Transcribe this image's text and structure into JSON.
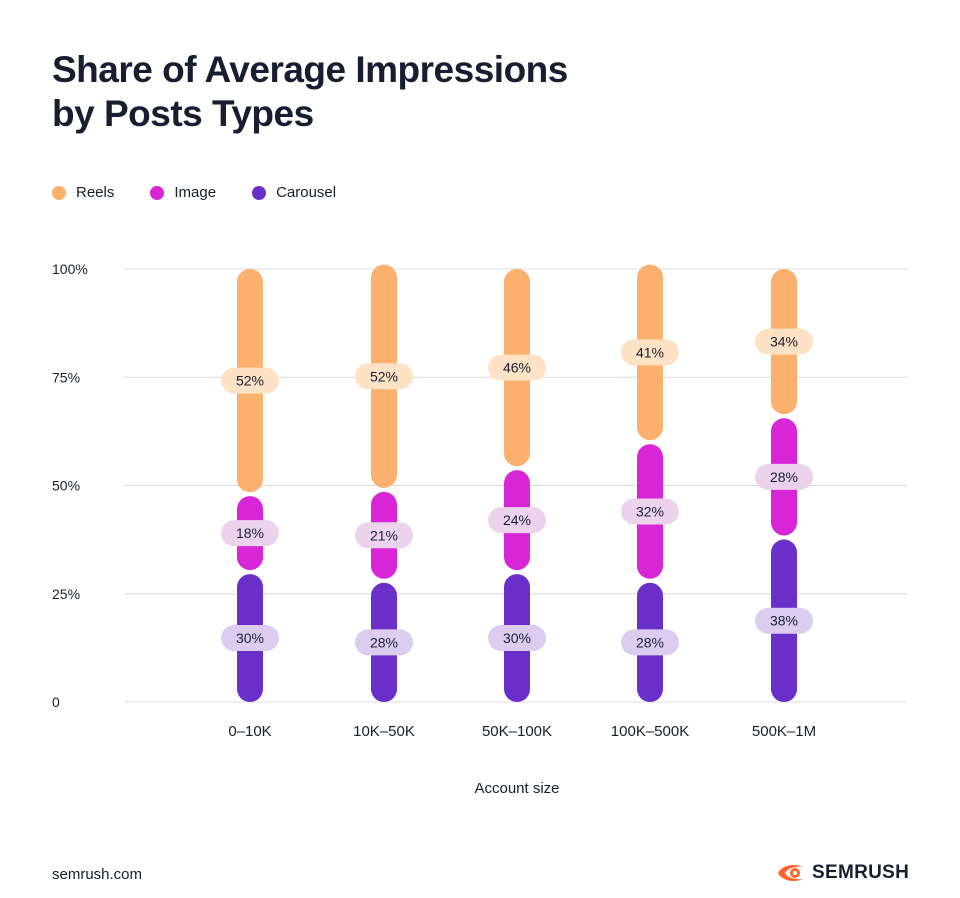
{
  "title_lines": [
    "Share of Average Impressions",
    "by Posts Types"
  ],
  "footer": {
    "url": "semrush.com",
    "brand": "SEMRUSH"
  },
  "colors": {
    "reels": "#fcb06d",
    "reels_label_bg": "#fde2c6",
    "image": "#d826d6",
    "image_label_bg": "#ecd3ec",
    "carousel": "#6a2fc8",
    "carousel_label_bg": "#dccdf0",
    "grid": "#dcdce0",
    "brand": "#ff642d"
  },
  "chart_data": {
    "type": "bar",
    "stacked": true,
    "xlabel": "Account size",
    "ylabel": "",
    "ylim": [
      0,
      100
    ],
    "yticks": [
      0,
      25,
      50,
      75,
      100
    ],
    "ytick_labels": [
      "0",
      "25%",
      "50%",
      "75%",
      "100%"
    ],
    "categories": [
      "0–10K",
      "10K–50K",
      "50K–100K",
      "100K–500K",
      "500K–1M"
    ],
    "series": [
      {
        "name": "Carousel",
        "key": "carousel",
        "values": [
          30,
          28,
          30,
          28,
          38
        ]
      },
      {
        "name": "Image",
        "key": "image",
        "values": [
          18,
          21,
          24,
          32,
          28
        ]
      },
      {
        "name": "Reels",
        "key": "reels",
        "values": [
          52,
          52,
          46,
          41,
          34
        ]
      }
    ],
    "legend": [
      "Reels",
      "Image",
      "Carousel"
    ],
    "legend_position": "top-left",
    "grid": true
  }
}
